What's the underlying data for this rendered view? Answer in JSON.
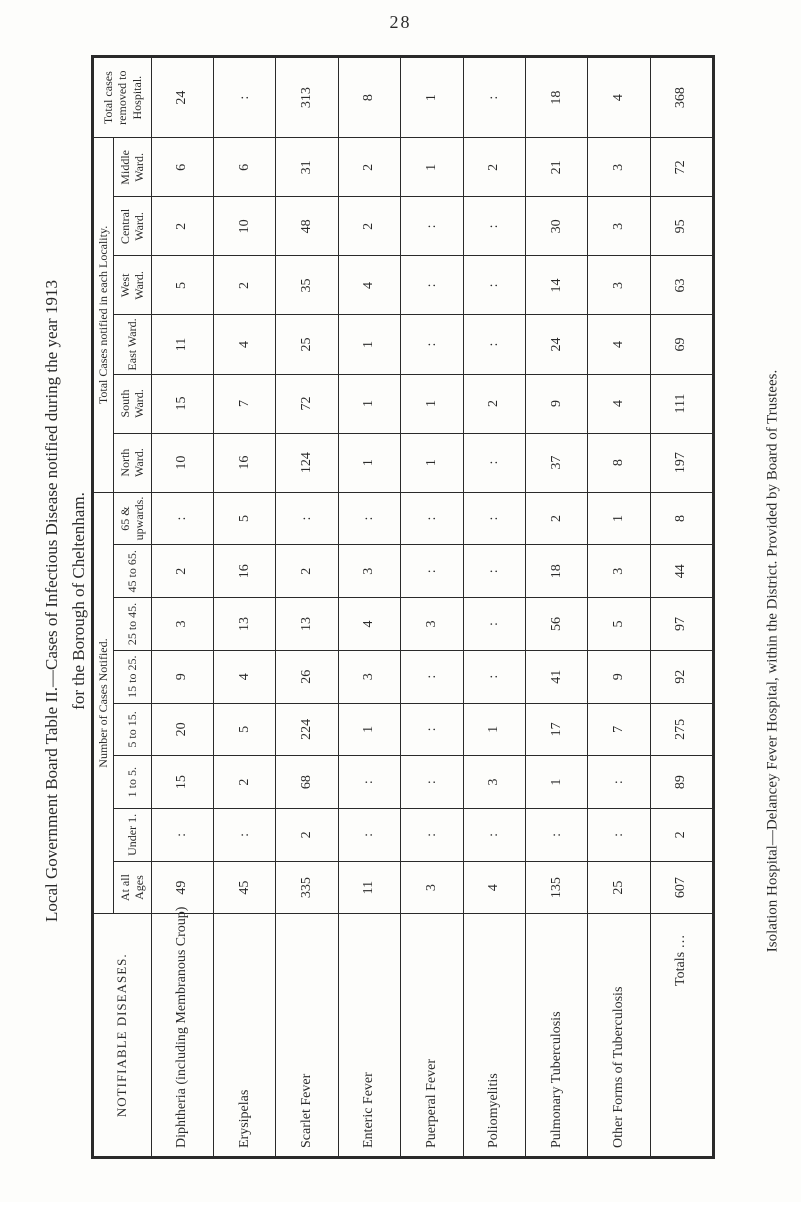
{
  "page_number": "28",
  "left_caption_line1": "Local Government Board Table II.—Cases of Infectious Disease notified during the year 1913",
  "left_caption_line2": "for the Borough of Cheltenham.",
  "right_caption": "Isolation Hospital—Delancey Fever Hospital, within the District.  Provided by Board of Trustees.",
  "stub_heading": "NOTIFIABLE DISEASES.",
  "group_headers": {
    "ages": "Number of Cases Notified.",
    "wards": "Total Cases notified in each Locality.",
    "hospital": "Total cases removed to Hospital."
  },
  "age_columns": [
    "At all Ages",
    "Under 1.",
    "1 to 5.",
    "5 to 15.",
    "15 to 25.",
    "25 to 45.",
    "45 to 65.",
    "65 & upwards."
  ],
  "ward_columns": [
    "North Ward.",
    "South Ward.",
    "East Ward.",
    "West Ward.",
    "Central Ward.",
    "Middle Ward."
  ],
  "rows": [
    {
      "label": "Diphtheria (including Membranous Croup)",
      "ages": [
        "49",
        ":",
        "15",
        "20",
        "9",
        "3",
        "2",
        ":"
      ],
      "wards": [
        "10",
        "15",
        "11",
        "5",
        "2",
        "6"
      ],
      "hospital": "24"
    },
    {
      "label": "Erysipelas",
      "ages": [
        "45",
        ":",
        "2",
        "5",
        "4",
        "13",
        "16",
        "5"
      ],
      "wards": [
        "16",
        "7",
        "4",
        "2",
        "10",
        "6"
      ],
      "hospital": ":"
    },
    {
      "label": "Scarlet Fever",
      "ages": [
        "335",
        "2",
        "68",
        "224",
        "26",
        "13",
        "2",
        ":"
      ],
      "wards": [
        "124",
        "72",
        "25",
        "35",
        "48",
        "31"
      ],
      "hospital": "313"
    },
    {
      "label": "Enteric Fever",
      "ages": [
        "11",
        ":",
        ":",
        "1",
        "3",
        "4",
        "3",
        ":"
      ],
      "wards": [
        "1",
        "1",
        "1",
        "4",
        "2",
        "2"
      ],
      "hospital": "8"
    },
    {
      "label": "Puerperal Fever",
      "ages": [
        "3",
        ":",
        ":",
        ":",
        ":",
        "3",
        ":",
        ":"
      ],
      "wards": [
        "1",
        "1",
        ":",
        ":",
        ":",
        "1"
      ],
      "hospital": "1"
    },
    {
      "label": "Poliomyelitis",
      "ages": [
        "4",
        ":",
        "3",
        "1",
        ":",
        ":",
        ":",
        ":"
      ],
      "wards": [
        ":",
        "2",
        ":",
        ":",
        ":",
        "2"
      ],
      "hospital": ":"
    },
    {
      "label": "Pulmonary Tuberculosis",
      "ages": [
        "135",
        ":",
        "1",
        "17",
        "41",
        "56",
        "18",
        "2"
      ],
      "wards": [
        "37",
        "9",
        "24",
        "14",
        "30",
        "21"
      ],
      "hospital": "18"
    },
    {
      "label": "Other Forms of Tuberculosis",
      "ages": [
        "25",
        ":",
        ":",
        "7",
        "9",
        "5",
        "3",
        "1"
      ],
      "wards": [
        "8",
        "4",
        "4",
        "3",
        "3",
        "3"
      ],
      "hospital": "4"
    }
  ],
  "totals": {
    "label": "Totals …",
    "ages": [
      "607",
      "2",
      "89",
      "275",
      "92",
      "97",
      "44",
      "8"
    ],
    "wards": [
      "197",
      "111",
      "69",
      "63",
      "95",
      "72"
    ],
    "hospital": "368"
  },
  "colors": {
    "background": "#fdfdfb",
    "ink": "#2a2a2a"
  }
}
